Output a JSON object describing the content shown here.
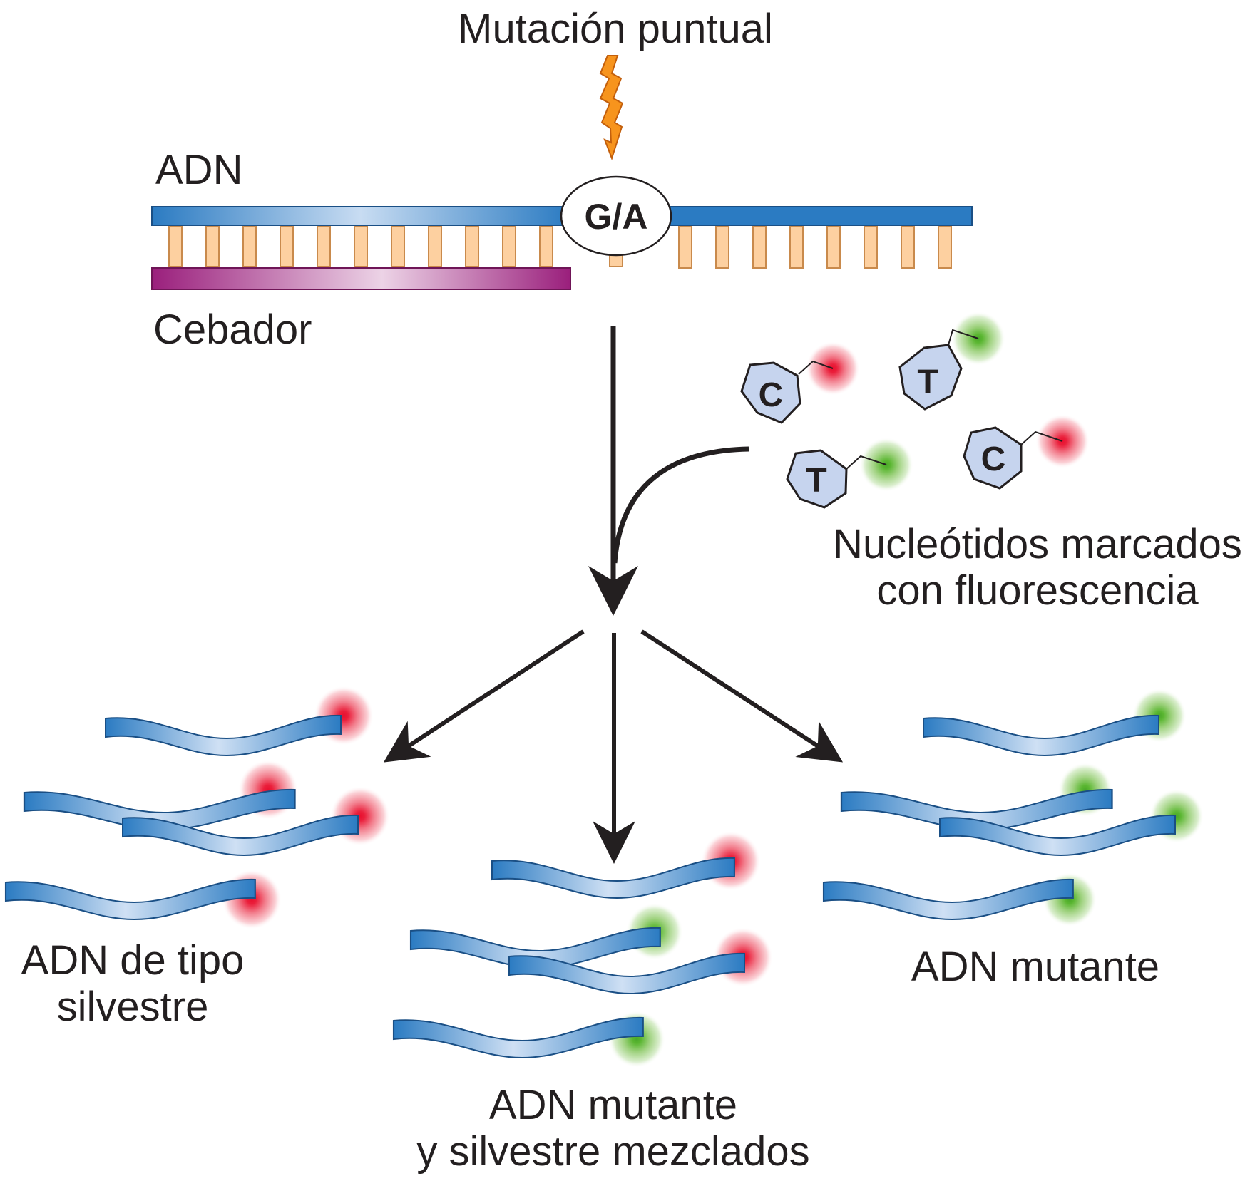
{
  "labels": {
    "mutation": "Mutación puntual",
    "dna": "ADN",
    "primer": "Cebador",
    "site": "G/A",
    "nucleotides_line1": "Nucleótidos marcados",
    "nucleotides_line2": "con fluorescencia",
    "wild_line1": "ADN de tipo",
    "wild_line2": "silvestre",
    "mixed_line1": "ADN mutante",
    "mixed_line2": "y silvestre mezclados",
    "mutant": "ADN mutante"
  },
  "nucleotides": [
    {
      "letter": "C",
      "dye": "red"
    },
    {
      "letter": "T",
      "dye": "green"
    },
    {
      "letter": "T",
      "dye": "green"
    },
    {
      "letter": "C",
      "dye": "red"
    }
  ],
  "groups": {
    "wild_type": [
      "red",
      "red",
      "red",
      "red"
    ],
    "mixed": [
      "red",
      "green",
      "red",
      "green"
    ],
    "mutant": [
      "green",
      "green",
      "green",
      "green"
    ]
  },
  "colors": {
    "dna_strand": "#2b7bc2",
    "primer": "#a3267f",
    "base_pair": "#fdd0a0",
    "nucleotide_fill": "#c6d4ee",
    "dye_red": "#e8102f",
    "dye_green": "#5ab631",
    "bolt": "#f7941d"
  }
}
